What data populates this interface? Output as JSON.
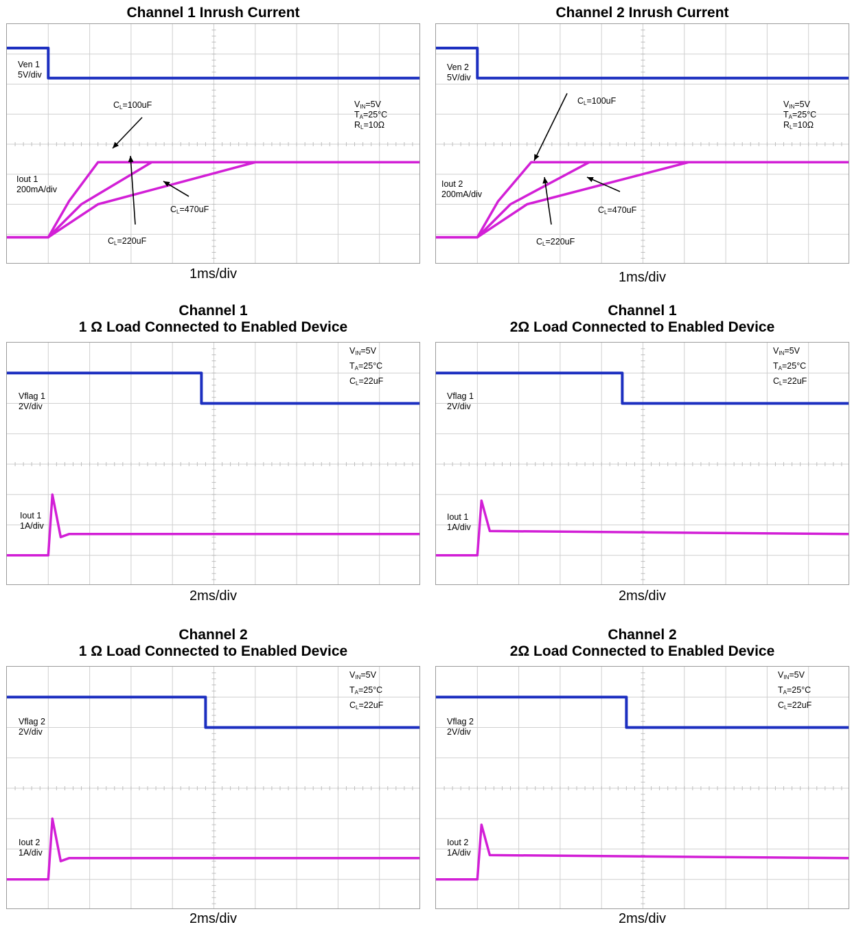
{
  "colors": {
    "voltage": "#1c2fc0",
    "current": "#d21fd6",
    "grid": "#cfcfcf"
  },
  "panels": [
    {
      "title_lines": [
        "Channel 1 Inrush Current"
      ],
      "x_caption": "1ms/div",
      "trace1": {
        "name": "Ven 1",
        "scale": "5V/div"
      },
      "trace2": {
        "name": "Iout 1",
        "scale": "200mA/div"
      },
      "conditions": [
        {
          "main": "V",
          "sub": "IN",
          "rest": "=5V"
        },
        {
          "main": "T",
          "sub": "A",
          "rest": "=25°C"
        },
        {
          "main": "R",
          "sub": "L",
          "rest": "=10Ω"
        }
      ],
      "annotations": [
        {
          "main": "C",
          "sub": "L",
          "rest": "=100uF"
        },
        {
          "main": "C",
          "sub": "L",
          "rest": "=470uF"
        },
        {
          "main": "C",
          "sub": "L",
          "rest": "=220uF"
        }
      ]
    },
    {
      "title_lines": [
        "Channel 2 Inrush Current"
      ],
      "x_caption": "1ms/div",
      "trace1": {
        "name": "Ven 2",
        "scale": "5V/div"
      },
      "trace2": {
        "name": "Iout 2",
        "scale": "200mA/div"
      },
      "conditions": [
        {
          "main": "V",
          "sub": "IN",
          "rest": "=5V"
        },
        {
          "main": "T",
          "sub": "A",
          "rest": "=25°C"
        },
        {
          "main": "R",
          "sub": "L",
          "rest": "=10Ω"
        }
      ],
      "annotations": [
        {
          "main": "C",
          "sub": "L",
          "rest": "=100uF"
        },
        {
          "main": "C",
          "sub": "L",
          "rest": "=470uF"
        },
        {
          "main": "C",
          "sub": "L",
          "rest": "=220uF"
        }
      ]
    },
    {
      "title_lines": [
        "Channel 1",
        "1 Ω Load Connected to Enabled Device"
      ],
      "x_caption": "2ms/div",
      "trace1": {
        "name": "Vflag 1",
        "scale": "2V/div"
      },
      "trace2": {
        "name": "Iout 1",
        "scale": "1A/div"
      },
      "conditions": [
        {
          "main": "V",
          "sub": "IN",
          "rest": "=5V"
        },
        {
          "main": "T",
          "sub": "A",
          "rest": "=25°C"
        },
        {
          "main": "C",
          "sub": "L",
          "rest": "=22uF"
        }
      ]
    },
    {
      "title_lines": [
        "Channel 1",
        "2Ω Load Connected to Enabled Device"
      ],
      "x_caption": "2ms/div",
      "trace1": {
        "name": "Vflag 1",
        "scale": "2V/div"
      },
      "trace2": {
        "name": "Iout 1",
        "scale": "1A/div"
      },
      "conditions": [
        {
          "main": "V",
          "sub": "IN",
          "rest": "=5V"
        },
        {
          "main": "T",
          "sub": "A",
          "rest": "=25°C"
        },
        {
          "main": "C",
          "sub": "L",
          "rest": "=22uF"
        }
      ]
    },
    {
      "title_lines": [
        "Channel 2",
        "1 Ω Load Connected to Enabled Device"
      ],
      "x_caption": "2ms/div",
      "trace1": {
        "name": "Vflag 2",
        "scale": "2V/div"
      },
      "trace2": {
        "name": "Iout 2",
        "scale": "1A/div"
      },
      "conditions": [
        {
          "main": "V",
          "sub": "IN",
          "rest": "=5V"
        },
        {
          "main": "T",
          "sub": "A",
          "rest": "=25°C"
        },
        {
          "main": "C",
          "sub": "L",
          "rest": "=22uF"
        }
      ]
    },
    {
      "title_lines": [
        "Channel 2",
        "2Ω Load Connected to Enabled Device"
      ],
      "x_caption": "2ms/div",
      "trace1": {
        "name": "Vflag 2",
        "scale": "2V/div"
      },
      "trace2": {
        "name": "Iout 2",
        "scale": "1A/div"
      },
      "conditions": [
        {
          "main": "V",
          "sub": "IN",
          "rest": "=5V"
        },
        {
          "main": "T",
          "sub": "A",
          "rest": "=25°C"
        },
        {
          "main": "C",
          "sub": "L",
          "rest": "=22uF"
        }
      ]
    }
  ],
  "chart_data": [
    {
      "type": "line",
      "title": "Channel 1 Inrush Current",
      "xlabel": "1ms/div",
      "x_divisions": 10,
      "y_divisions": 8,
      "series": [
        {
          "name": "Ven 1",
          "points": [
            [
              0,
              7.2
            ],
            [
              1,
              7.2
            ],
            [
              1,
              6.2
            ],
            [
              10,
              6.2
            ]
          ]
        },
        {
          "name": "Iout 1",
          "points": [
            [
              0,
              0.9
            ],
            [
              1,
              0.9
            ],
            [
              1.5,
              2.1
            ],
            [
              2.2,
              3.4
            ],
            [
              10,
              3.4
            ]
          ]
        },
        {
          "name": "Iout 1",
          "points": [
            [
              0,
              0.9
            ],
            [
              1,
              0.9
            ],
            [
              1.8,
              2.0
            ],
            [
              3.5,
              3.4
            ],
            [
              10,
              3.4
            ]
          ]
        },
        {
          "name": "Iout 1",
          "points": [
            [
              0,
              0.9
            ],
            [
              1,
              0.9
            ],
            [
              2.2,
              2.0
            ],
            [
              6,
              3.4
            ],
            [
              10,
              3.4
            ]
          ]
        }
      ]
    },
    {
      "type": "line",
      "title": "Channel 2 Inrush Current",
      "xlabel": "1ms/div",
      "x_divisions": 10,
      "y_divisions": 8,
      "series": [
        {
          "name": "Ven 2",
          "points": [
            [
              0,
              7.2
            ],
            [
              1,
              7.2
            ],
            [
              1,
              6.2
            ],
            [
              10,
              6.2
            ]
          ]
        },
        {
          "name": "Iout 2",
          "points": [
            [
              0,
              0.9
            ],
            [
              1,
              0.9
            ],
            [
              1.5,
              2.1
            ],
            [
              2.3,
              3.4
            ],
            [
              10,
              3.4
            ]
          ]
        },
        {
          "name": "Iout 2",
          "points": [
            [
              0,
              0.9
            ],
            [
              1,
              0.9
            ],
            [
              1.8,
              2.0
            ],
            [
              3.7,
              3.4
            ],
            [
              10,
              3.4
            ]
          ]
        },
        {
          "name": "Iout 2",
          "points": [
            [
              0,
              0.9
            ],
            [
              1,
              0.9
            ],
            [
              2.2,
              2.0
            ],
            [
              6.1,
              3.4
            ],
            [
              10,
              3.4
            ]
          ]
        }
      ]
    },
    {
      "type": "line",
      "title": "Channel 1 1 Ω Load Connected to Enabled Device",
      "xlabel": "2ms/div",
      "x_divisions": 10,
      "y_divisions": 8,
      "series": [
        {
          "name": "Vflag 1",
          "points": [
            [
              0,
              7.0
            ],
            [
              4.7,
              7.0
            ],
            [
              4.7,
              6.0
            ],
            [
              10,
              6.0
            ]
          ]
        },
        {
          "name": "Iout 1",
          "points": [
            [
              0,
              1.0
            ],
            [
              1,
              1.0
            ],
            [
              1.1,
              3.0
            ],
            [
              1.3,
              1.6
            ],
            [
              1.5,
              1.7
            ],
            [
              10,
              1.7
            ]
          ]
        }
      ]
    },
    {
      "type": "line",
      "title": "Channel 1 2Ω Load Connected to Enabled Device",
      "xlabel": "2ms/div",
      "x_divisions": 10,
      "y_divisions": 8,
      "series": [
        {
          "name": "Vflag 1",
          "points": [
            [
              0,
              7.0
            ],
            [
              4.5,
              7.0
            ],
            [
              4.5,
              6.0
            ],
            [
              10,
              6.0
            ]
          ]
        },
        {
          "name": "Iout 1",
          "points": [
            [
              0,
              1.0
            ],
            [
              1,
              1.0
            ],
            [
              1.1,
              2.8
            ],
            [
              1.3,
              1.8
            ],
            [
              10,
              1.7
            ]
          ]
        }
      ]
    },
    {
      "type": "line",
      "title": "Channel 2 1 Ω Load Connected to Enabled Device",
      "xlabel": "2ms/div",
      "x_divisions": 10,
      "y_divisions": 8,
      "series": [
        {
          "name": "Vflag 2",
          "points": [
            [
              0,
              7.0
            ],
            [
              4.8,
              7.0
            ],
            [
              4.8,
              6.0
            ],
            [
              10,
              6.0
            ]
          ]
        },
        {
          "name": "Iout 2",
          "points": [
            [
              0,
              1.0
            ],
            [
              1,
              1.0
            ],
            [
              1.1,
              3.0
            ],
            [
              1.3,
              1.6
            ],
            [
              1.5,
              1.7
            ],
            [
              10,
              1.7
            ]
          ]
        }
      ]
    },
    {
      "type": "line",
      "title": "Channel 2 2Ω Load Connected to Enabled Device",
      "xlabel": "2ms/div",
      "x_divisions": 10,
      "y_divisions": 8,
      "series": [
        {
          "name": "Vflag 2",
          "points": [
            [
              0,
              7.0
            ],
            [
              4.6,
              7.0
            ],
            [
              4.6,
              6.0
            ],
            [
              10,
              6.0
            ]
          ]
        },
        {
          "name": "Iout 2",
          "points": [
            [
              0,
              1.0
            ],
            [
              1,
              1.0
            ],
            [
              1.1,
              2.8
            ],
            [
              1.3,
              1.8
            ],
            [
              10,
              1.7
            ]
          ]
        }
      ]
    }
  ]
}
